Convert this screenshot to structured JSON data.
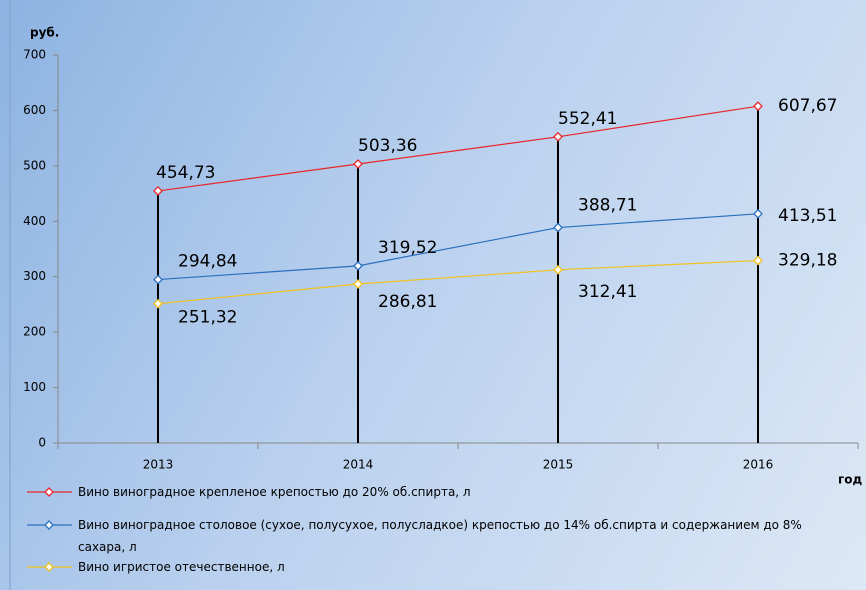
{
  "chart_data": {
    "type": "line",
    "y_label": "руб.",
    "x_label": "год",
    "categories": [
      "2013",
      "2014",
      "2015",
      "2016"
    ],
    "series": [
      {
        "name": "Вино виноградное крепленое крепостью до 20% об.спирта, л",
        "color": "#e8262a",
        "values": [
          454.73,
          503.36,
          552.41,
          607.67
        ],
        "value_labels": [
          "454,73",
          "503,36",
          "552,41",
          "607,67"
        ]
      },
      {
        "name": "Вино виноградное столовое (сухое, полусухое, полусладкое) крепостью до 14% об.спирта и содержанием до 8% сахара, л",
        "color": "#2a6fbd",
        "values": [
          294.84,
          319.52,
          388.71,
          413.51
        ],
        "value_labels": [
          "294,84",
          "319,52",
          "388,71",
          "413,51"
        ]
      },
      {
        "name": "Вино игристое отечественное, л",
        "color": "#f2c21b",
        "values": [
          251.32,
          286.81,
          312.41,
          329.18
        ],
        "value_labels": [
          "251,32",
          "286,81",
          "312,41",
          "329,18"
        ]
      }
    ],
    "ylim": [
      0,
      700
    ],
    "yticks": [
      0,
      100,
      200,
      300,
      400,
      500,
      600,
      700
    ],
    "drop_lines": true
  }
}
